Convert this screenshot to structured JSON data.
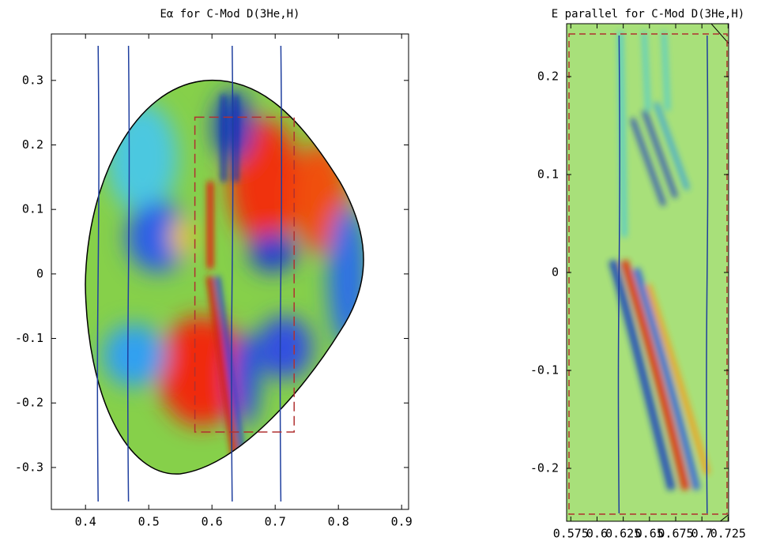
{
  "chart_data": [
    {
      "type": "contour",
      "title": "Eα for C-Mod D(3He,H)",
      "xlim": [
        0.346,
        0.911
      ],
      "ylim": [
        -0.365,
        0.372
      ],
      "xticks": [
        0.4,
        0.5,
        0.6,
        0.7,
        0.8,
        0.9
      ],
      "yticks": [
        0.3,
        0.2,
        0.1,
        0,
        -0.1,
        -0.2,
        -0.3
      ],
      "vlines": [
        0.42,
        0.468,
        0.632,
        0.709
      ],
      "vline_color": "#1f3f9f",
      "box_x": [
        0.573,
        0.73
      ],
      "box_y": [
        -0.245,
        0.243
      ],
      "box_color": "#b03030"
    },
    {
      "type": "contour",
      "title": "E parallel for C-Mod D(3He,H)",
      "xlim": [
        0.571,
        0.7255
      ],
      "ylim": [
        -0.254,
        0.254
      ],
      "xticks": [
        0.575,
        0.6,
        0.625,
        0.65,
        0.675,
        0.7,
        0.725
      ],
      "yticks": [
        0.2,
        0.1,
        0,
        -0.1,
        -0.2
      ],
      "vlines": [
        0.621,
        0.705
      ],
      "vline_color": "#1f3f9f"
    }
  ]
}
